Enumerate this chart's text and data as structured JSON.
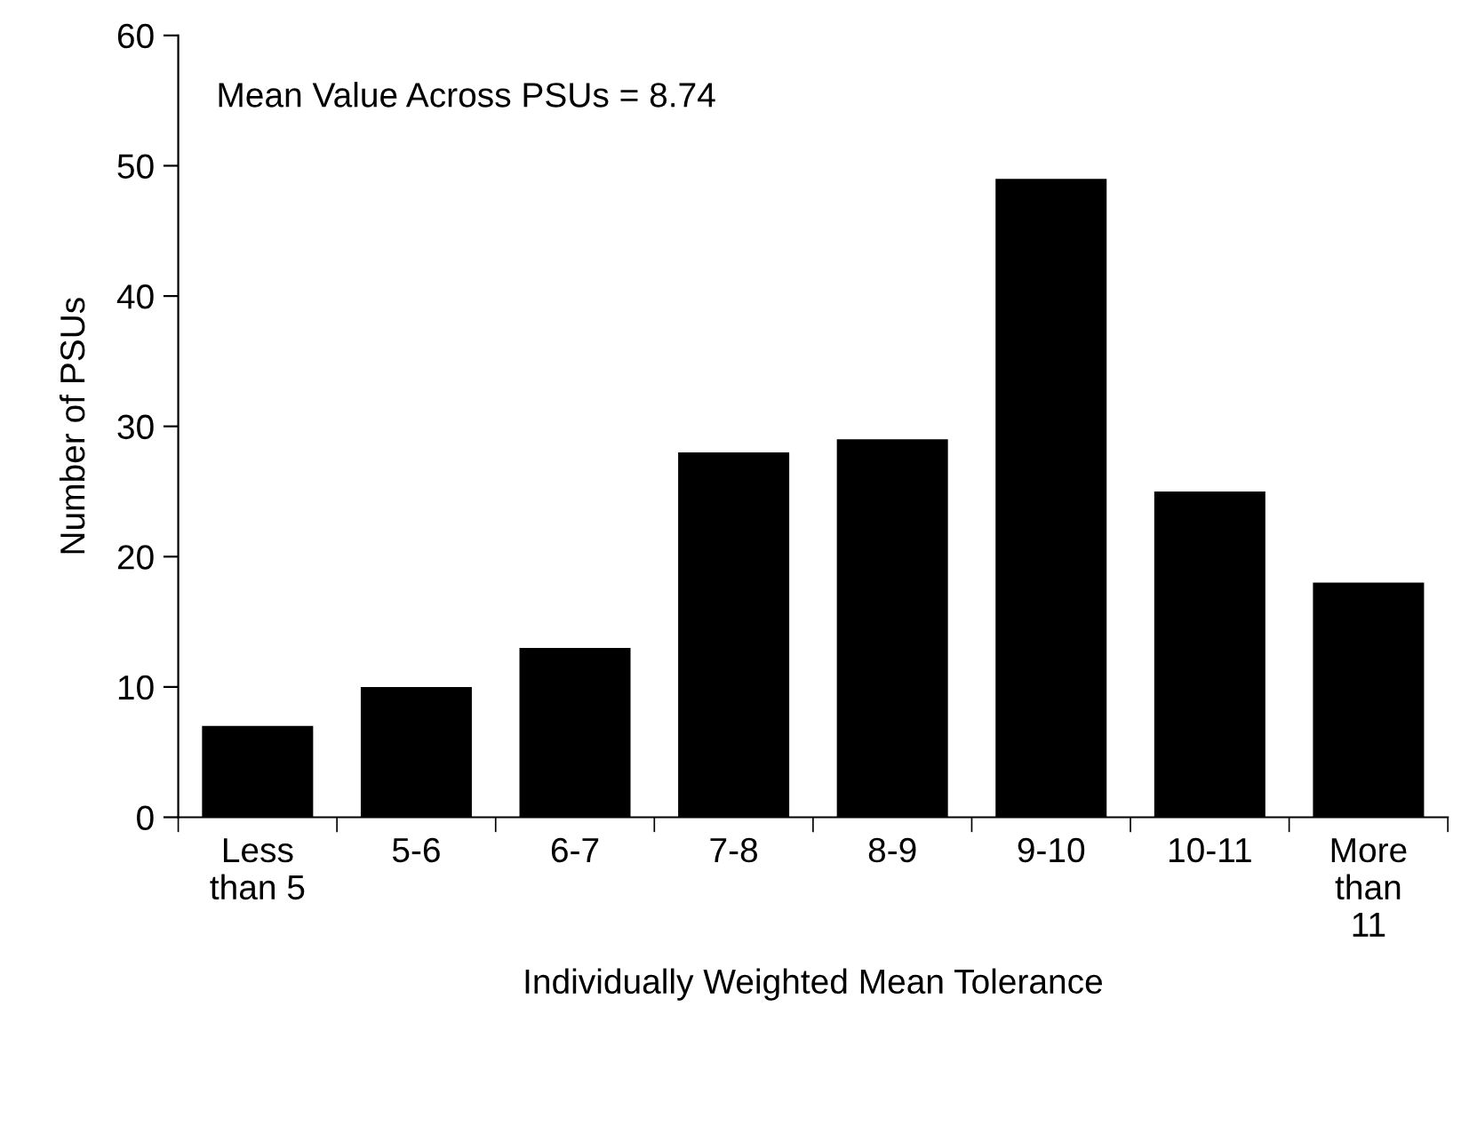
{
  "chart_data": {
    "type": "bar",
    "xlabel": "Individually Weighted Mean Tolerance",
    "ylabel": "Number of PSUs",
    "annotations": [
      "Mean Value Across PSUs = 8.74"
    ],
    "categories": [
      "Less\nthan 5",
      "5-6",
      "6-7",
      "7-8",
      "8-9",
      "9-10",
      "10-11",
      "More\nthan\n11"
    ],
    "values": [
      7,
      10,
      13,
      28,
      29,
      49,
      25,
      18
    ],
    "color": "#000000",
    "ylim": [
      0,
      60
    ],
    "yticks": [
      0,
      10,
      20,
      30,
      40,
      50,
      60
    ],
    "grid": false,
    "legend": false
  }
}
